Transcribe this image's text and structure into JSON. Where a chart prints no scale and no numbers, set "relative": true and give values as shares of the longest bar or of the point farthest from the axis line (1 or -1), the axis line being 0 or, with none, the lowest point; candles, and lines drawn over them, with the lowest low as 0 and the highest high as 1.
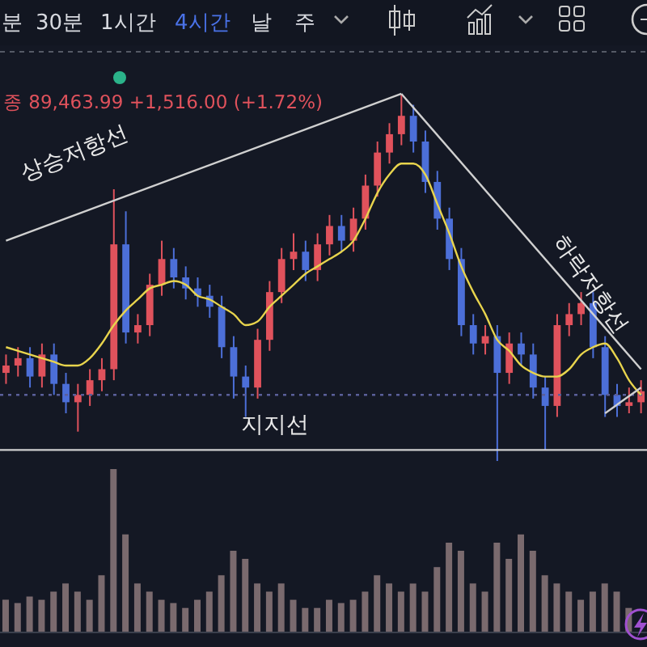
{
  "chart_data": [
    {
      "type": "candlestick",
      "relative": true,
      "subtitle": "종 89,463.99 +1,516.00 (+1.72%)",
      "annotations": [
        "분",
        "30분",
        "1시간",
        "4시간",
        "날",
        "주"
      ],
      "categories": [
        null,
        null,
        null,
        null,
        null,
        null,
        null,
        null,
        null,
        null,
        null,
        null,
        null,
        null,
        null,
        null,
        null,
        null,
        null,
        null,
        null,
        null,
        null,
        null,
        null,
        null,
        null,
        null,
        null,
        null,
        null,
        null,
        null,
        null,
        null,
        null,
        null,
        null,
        null,
        null,
        null,
        null,
        null,
        null,
        null,
        null,
        null,
        null,
        null,
        null,
        null,
        null,
        null,
        null
      ],
      "ohlc": [
        [
          0.24,
          0.29,
          0.21,
          0.26
        ],
        [
          0.26,
          0.31,
          0.23,
          0.28
        ],
        [
          0.28,
          0.31,
          0.2,
          0.23
        ],
        [
          0.23,
          0.32,
          0.2,
          0.29
        ],
        [
          0.29,
          0.32,
          0.18,
          0.21
        ],
        [
          0.21,
          0.24,
          0.13,
          0.16
        ],
        [
          0.16,
          0.21,
          0.08,
          0.18
        ],
        [
          0.18,
          0.25,
          0.15,
          0.22
        ],
        [
          0.22,
          0.28,
          0.19,
          0.25
        ],
        [
          0.25,
          0.74,
          0.22,
          0.59
        ],
        [
          0.59,
          0.68,
          0.32,
          0.35
        ],
        [
          0.35,
          0.4,
          0.32,
          0.37
        ],
        [
          0.37,
          0.51,
          0.34,
          0.48
        ],
        [
          0.48,
          0.6,
          0.45,
          0.55
        ],
        [
          0.55,
          0.58,
          0.47,
          0.5
        ],
        [
          0.5,
          0.53,
          0.44,
          0.47
        ],
        [
          0.47,
          0.5,
          0.42,
          0.45
        ],
        [
          0.45,
          0.48,
          0.39,
          0.42
        ],
        [
          0.42,
          0.45,
          0.28,
          0.31
        ],
        [
          0.31,
          0.34,
          0.17,
          0.23
        ],
        [
          0.23,
          0.26,
          0.12,
          0.2
        ],
        [
          0.2,
          0.36,
          0.17,
          0.33
        ],
        [
          0.33,
          0.49,
          0.3,
          0.46
        ],
        [
          0.46,
          0.58,
          0.43,
          0.55
        ],
        [
          0.55,
          0.62,
          0.52,
          0.57
        ],
        [
          0.57,
          0.6,
          0.49,
          0.52
        ],
        [
          0.52,
          0.62,
          0.49,
          0.59
        ],
        [
          0.59,
          0.67,
          0.56,
          0.64
        ],
        [
          0.64,
          0.67,
          0.57,
          0.6
        ],
        [
          0.6,
          0.69,
          0.57,
          0.66
        ],
        [
          0.66,
          0.78,
          0.63,
          0.75
        ],
        [
          0.75,
          0.87,
          0.72,
          0.84
        ],
        [
          0.84,
          0.92,
          0.81,
          0.89
        ],
        [
          0.89,
          1.0,
          0.86,
          0.94
        ],
        [
          0.94,
          0.97,
          0.84,
          0.87
        ],
        [
          0.87,
          0.9,
          0.73,
          0.76
        ],
        [
          0.76,
          0.79,
          0.63,
          0.66
        ],
        [
          0.66,
          0.69,
          0.52,
          0.55
        ],
        [
          0.55,
          0.58,
          0.34,
          0.37
        ],
        [
          0.37,
          0.4,
          0.29,
          0.32
        ],
        [
          0.32,
          0.37,
          0.29,
          0.34
        ],
        [
          0.34,
          0.37,
          0.0,
          0.24
        ],
        [
          0.24,
          0.35,
          0.21,
          0.32
        ],
        [
          0.32,
          0.35,
          0.26,
          0.29
        ],
        [
          0.29,
          0.32,
          0.17,
          0.2
        ],
        [
          0.2,
          0.23,
          0.03,
          0.15
        ],
        [
          0.15,
          0.4,
          0.12,
          0.37
        ],
        [
          0.37,
          0.43,
          0.34,
          0.4
        ],
        [
          0.4,
          0.46,
          0.37,
          0.43
        ],
        [
          0.43,
          0.46,
          0.28,
          0.31
        ],
        [
          0.31,
          0.34,
          0.12,
          0.18
        ],
        [
          0.18,
          0.21,
          0.12,
          0.15
        ],
        [
          0.15,
          0.2,
          0.13,
          0.16
        ],
        [
          0.16,
          0.22,
          0.13,
          0.19
        ]
      ],
      "colors": [
        "#e0525c",
        "#e0525c",
        "#4c6fd8",
        "#e0525c",
        "#4c6fd8",
        "#4c6fd8",
        "#e0525c",
        "#e0525c",
        "#e0525c",
        "#e0525c",
        "#4c6fd8",
        "#e0525c",
        "#e0525c",
        "#e0525c",
        "#4c6fd8",
        "#4c6fd8",
        "#4c6fd8",
        "#4c6fd8",
        "#4c6fd8",
        "#4c6fd8",
        "#4c6fd8",
        "#e0525c",
        "#e0525c",
        "#e0525c",
        "#e0525c",
        "#4c6fd8",
        "#e0525c",
        "#e0525c",
        "#4c6fd8",
        "#e0525c",
        "#e0525c",
        "#e0525c",
        "#e0525c",
        "#e0525c",
        "#4c6fd8",
        "#4c6fd8",
        "#4c6fd8",
        "#4c6fd8",
        "#4c6fd8",
        "#4c6fd8",
        "#e0525c",
        "#4c6fd8",
        "#e0525c",
        "#4c6fd8",
        "#4c6fd8",
        "#4c6fd8",
        "#e0525c",
        "#e0525c",
        "#e0525c",
        "#4c6fd8",
        "#4c6fd8",
        "#4c6fd8",
        "#e0525c",
        "#e0525c"
      ],
      "series": [
        {
          "type": "line",
          "color": "#e8d44d",
          "values": [
            0.31,
            0.3,
            0.29,
            0.28,
            0.27,
            0.26,
            0.26,
            0.28,
            0.32,
            0.37,
            0.41,
            0.44,
            0.47,
            0.48,
            0.49,
            0.48,
            0.45,
            0.44,
            0.42,
            0.4,
            0.37,
            0.38,
            0.42,
            0.45,
            0.48,
            0.51,
            0.53,
            0.55,
            0.57,
            0.6,
            0.66,
            0.73,
            0.78,
            0.81,
            0.81,
            0.78,
            0.7,
            0.62,
            0.53,
            0.46,
            0.4,
            0.33,
            0.3,
            0.26,
            0.24,
            0.23,
            0.23,
            0.25,
            0.29,
            0.31,
            0.32,
            0.28,
            0.22,
            0.18
          ]
        },
        {
          "type": "line",
          "name": "상승저항선",
          "color": "#d0d0d0",
          "values": [
            0.6,
            null,
            null,
            null,
            null,
            null,
            null,
            null,
            null,
            null,
            null,
            null,
            null,
            null,
            null,
            null,
            null,
            null,
            null,
            null,
            null,
            null,
            null,
            null,
            null,
            null,
            null,
            null,
            null,
            null,
            null,
            null,
            null,
            1.0,
            null,
            null,
            null,
            null,
            null,
            null,
            null,
            null,
            null,
            null,
            null,
            null,
            null,
            null,
            null,
            null,
            null,
            null,
            null,
            null
          ]
        },
        {
          "type": "line",
          "name": "하락저항선",
          "color": "#d0d0d0",
          "values": [
            null,
            null,
            null,
            null,
            null,
            null,
            null,
            null,
            null,
            null,
            null,
            null,
            null,
            null,
            null,
            null,
            null,
            null,
            null,
            null,
            null,
            null,
            null,
            null,
            null,
            null,
            null,
            null,
            null,
            null,
            null,
            null,
            null,
            1.0,
            null,
            null,
            null,
            null,
            null,
            null,
            null,
            null,
            null,
            null,
            null,
            null,
            null,
            null,
            null,
            null,
            null,
            null,
            null,
            0.25
          ]
        },
        {
          "type": "line",
          "color": "#d0d0d0",
          "values": [
            null,
            null,
            null,
            null,
            null,
            null,
            null,
            null,
            null,
            null,
            null,
            null,
            null,
            null,
            null,
            null,
            null,
            null,
            null,
            null,
            null,
            null,
            null,
            null,
            null,
            null,
            null,
            null,
            null,
            null,
            null,
            null,
            null,
            null,
            null,
            null,
            null,
            null,
            null,
            null,
            null,
            null,
            null,
            null,
            null,
            null,
            null,
            null,
            null,
            null,
            0.13,
            null,
            null,
            0.2
          ]
        }
      ],
      "ref_lines": [
        {
          "axis": "y",
          "value": 0.03,
          "label": "지지선",
          "color": "#d0d0d0",
          "line_style": "solid"
        },
        {
          "axis": "y",
          "value": 0.18,
          "label": null,
          "color": "#5a5f9a",
          "line_style": "dotted"
        }
      ]
    },
    {
      "type": "bar",
      "relative": true,
      "color": "#7a6a6e",
      "categories": [
        null,
        null,
        null,
        null,
        null,
        null,
        null,
        null,
        null,
        null,
        null,
        null,
        null,
        null,
        null,
        null,
        null,
        null,
        null,
        null,
        null,
        null,
        null,
        null,
        null,
        null,
        null,
        null,
        null,
        null,
        null,
        null,
        null,
        null,
        null,
        null,
        null,
        null,
        null,
        null,
        null,
        null,
        null,
        null,
        null,
        null,
        null,
        null,
        null,
        null,
        null,
        null,
        null,
        null
      ],
      "values": [
        0.2,
        0.18,
        0.22,
        0.2,
        0.25,
        0.3,
        0.25,
        0.2,
        0.35,
        1.0,
        0.6,
        0.3,
        0.25,
        0.2,
        0.18,
        0.15,
        0.2,
        0.25,
        0.35,
        0.5,
        0.45,
        0.3,
        0.25,
        0.3,
        0.2,
        0.15,
        0.15,
        0.2,
        0.18,
        0.2,
        0.25,
        0.35,
        0.3,
        0.25,
        0.3,
        0.25,
        0.4,
        0.55,
        0.5,
        0.3,
        0.25,
        0.55,
        0.45,
        0.6,
        0.5,
        0.35,
        0.3,
        0.25,
        0.2,
        0.25,
        0.3,
        0.25,
        0.15,
        null
      ]
    }
  ]
}
